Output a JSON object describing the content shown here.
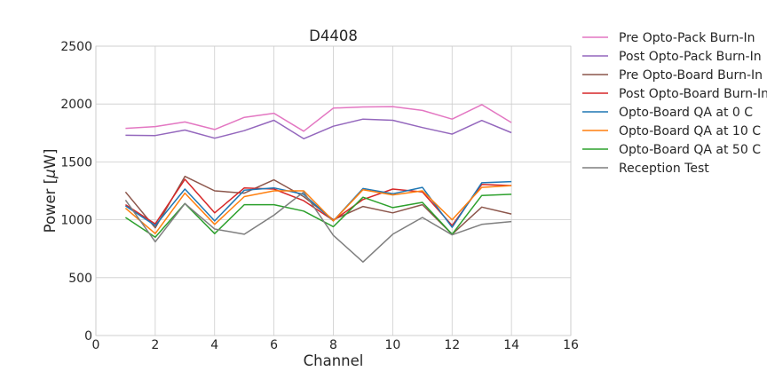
{
  "chart_data": {
    "type": "line",
    "title": "D4408",
    "xlabel": "Channel",
    "ylabel_prefix": "Power [",
    "ylabel_mu": "μ",
    "ylabel_suffix": "W]",
    "xlim": [
      0,
      16
    ],
    "ylim": [
      0,
      2500
    ],
    "xticks": [
      0,
      2,
      4,
      6,
      8,
      10,
      12,
      14,
      16
    ],
    "yticks": [
      0,
      500,
      1000,
      1500,
      2000,
      2500
    ],
    "grid": true,
    "legend_position": "outside-right",
    "x": [
      1,
      2,
      3,
      4,
      5,
      6,
      7,
      8,
      9,
      10,
      11,
      12,
      13,
      14
    ],
    "series": [
      {
        "name": "Pre Opto-Pack Burn-In",
        "color": "#e377c2",
        "values": [
          1790,
          1805,
          1845,
          1780,
          1885,
          1920,
          1765,
          1965,
          1975,
          1978,
          1945,
          1870,
          1995,
          1840
        ]
      },
      {
        "name": "Post Opto-Pack Burn-In",
        "color": "#9467bd",
        "values": [
          1730,
          1728,
          1775,
          1705,
          1770,
          1860,
          1700,
          1808,
          1870,
          1860,
          1797,
          1740,
          1858,
          1752
        ]
      },
      {
        "name": "Pre Opto-Board Burn-In",
        "color": "#8c564b",
        "values": [
          1240,
          930,
          1375,
          1250,
          1230,
          1345,
          1200,
          1000,
          1115,
          1060,
          1130,
          875,
          1110,
          1050
        ]
      },
      {
        "name": "Post Opto-Board Burn-In",
        "color": "#d62728",
        "values": [
          1130,
          965,
          1350,
          1060,
          1275,
          1265,
          1165,
          995,
          1175,
          1265,
          1240,
          950,
          1305,
          1295
        ]
      },
      {
        "name": "Opto-Board QA at 0 C",
        "color": "#1f77b4",
        "values": [
          1120,
          950,
          1265,
          990,
          1255,
          1275,
          1220,
          990,
          1270,
          1225,
          1280,
          935,
          1320,
          1330
        ]
      },
      {
        "name": "Opto-Board QA at 10 C",
        "color": "#ff7f0e",
        "values": [
          1100,
          880,
          1230,
          960,
          1200,
          1250,
          1250,
          990,
          1260,
          1215,
          1250,
          1000,
          1280,
          1295
        ]
      },
      {
        "name": "Opto-Board QA at 50 C",
        "color": "#2ca02c",
        "values": [
          1020,
          850,
          1140,
          880,
          1130,
          1130,
          1075,
          940,
          1195,
          1105,
          1150,
          875,
          1210,
          1220
        ]
      },
      {
        "name": "Reception Test",
        "color": "#7f7f7f",
        "values": [
          1170,
          810,
          1140,
          920,
          875,
          1040,
          1240,
          865,
          635,
          875,
          1020,
          870,
          960,
          985
        ]
      }
    ]
  }
}
